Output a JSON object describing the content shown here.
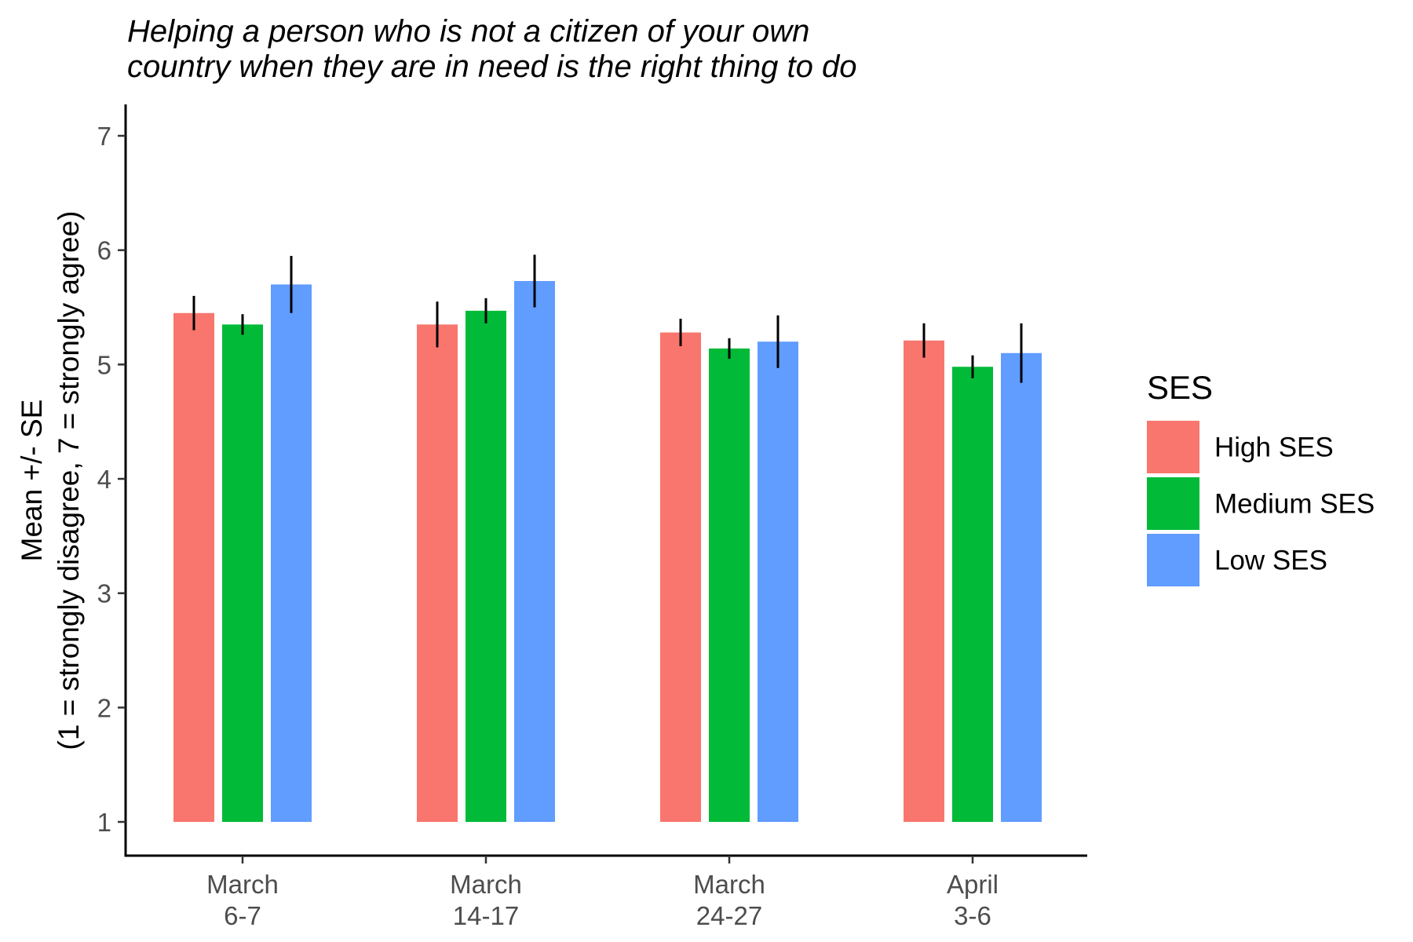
{
  "chart_data": {
    "type": "bar",
    "title": [
      "Helping a person who is not a citizen of your own",
      "country when they are in need is the right thing to do"
    ],
    "ylabel": [
      "Mean +/- SE",
      "(1 = strongly disagree, 7 = strongly agree)"
    ],
    "xlabel": "",
    "ylim": [
      1,
      7
    ],
    "yticks": [
      1,
      2,
      3,
      4,
      5,
      6,
      7
    ],
    "grid": false,
    "legend": {
      "title": "SES",
      "position": "right"
    },
    "categories": [
      [
        "March",
        "6-7"
      ],
      [
        "March",
        "14-17"
      ],
      [
        "March",
        "24-27"
      ],
      [
        "April",
        "3-6"
      ]
    ],
    "series": [
      {
        "name": "High SES",
        "color": "#F8766D",
        "values": [
          5.45,
          5.35,
          5.28,
          5.21
        ],
        "errors": [
          0.15,
          0.2,
          0.12,
          0.15
        ]
      },
      {
        "name": "Medium SES",
        "color": "#00BA38",
        "values": [
          5.35,
          5.47,
          5.14,
          4.98
        ],
        "errors": [
          0.09,
          0.11,
          0.09,
          0.1
        ]
      },
      {
        "name": "Low SES",
        "color": "#619CFF",
        "values": [
          5.7,
          5.73,
          5.2,
          5.1
        ],
        "errors": [
          0.25,
          0.23,
          0.23,
          0.26
        ]
      }
    ]
  }
}
